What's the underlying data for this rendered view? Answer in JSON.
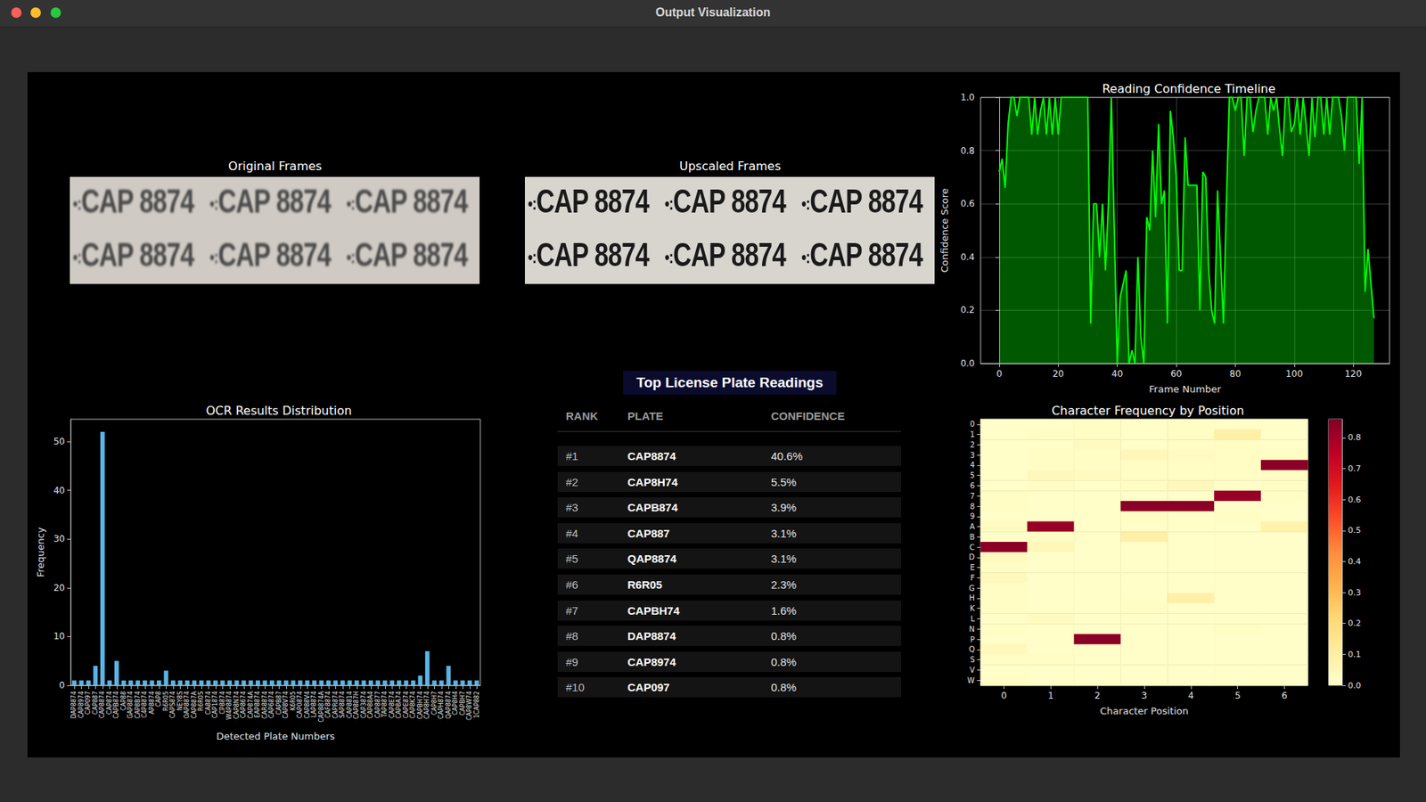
{
  "window": {
    "title": "Output Visualization"
  },
  "frames": {
    "original": {
      "title": "Original Frames",
      "plates": [
        "CAP 8874",
        "CAP 8874",
        "CAP 8874",
        "CAP 8874",
        "CAP 8874",
        "CAP 8874"
      ]
    },
    "upscaled": {
      "title": "Upscaled Frames",
      "plates": [
        "CAP 8874",
        "CAP 8874",
        "CAP 8874",
        "CAP 8874",
        "CAP 8874",
        "CAP 8874"
      ]
    }
  },
  "table": {
    "title": "Top License Plate Readings",
    "columns": [
      "RANK",
      "PLATE",
      "CONFIDENCE"
    ],
    "rows": [
      [
        "#1",
        "CAP8874",
        "40.6%"
      ],
      [
        "#2",
        "CAP8H74",
        "5.5%"
      ],
      [
        "#3",
        "CAPB874",
        "3.9%"
      ],
      [
        "#4",
        "CAP887",
        "3.1%"
      ],
      [
        "#5",
        "QAP8874",
        "3.1%"
      ],
      [
        "#6",
        "R6R05",
        "2.3%"
      ],
      [
        "#7",
        "CAPBH74",
        "1.6%"
      ],
      [
        "#8",
        "DAP8874",
        "0.8%"
      ],
      [
        "#9",
        "CAP8974",
        "0.8%"
      ],
      [
        "#10",
        "CAP097",
        "0.8%"
      ]
    ]
  },
  "chart_data": [
    {
      "type": "line",
      "title": "Reading Confidence Timeline",
      "xlabel": "Frame Number",
      "ylabel": "Confidence Score",
      "color": "#00ff00",
      "grid": true,
      "x": [
        0,
        1,
        2,
        3,
        4,
        5,
        6,
        7,
        8,
        9,
        10,
        11,
        12,
        13,
        14,
        15,
        16,
        17,
        18,
        19,
        20,
        21,
        22,
        23,
        24,
        25,
        26,
        27,
        28,
        29,
        30,
        31,
        32,
        33,
        34,
        35,
        36,
        37,
        38,
        39,
        40,
        41,
        42,
        43,
        44,
        45,
        46,
        47,
        48,
        49,
        50,
        51,
        52,
        53,
        54,
        55,
        56,
        57,
        58,
        59,
        60,
        61,
        62,
        63,
        64,
        65,
        66,
        67,
        68,
        69,
        70,
        71,
        72,
        73,
        74,
        75,
        76,
        77,
        78,
        79,
        80,
        81,
        82,
        83,
        84,
        85,
        86,
        87,
        88,
        89,
        90,
        91,
        92,
        93,
        94,
        95,
        96,
        97,
        98,
        99,
        100,
        101,
        102,
        103,
        104,
        105,
        106,
        107,
        108,
        109,
        110,
        111,
        112,
        113,
        114,
        115,
        116,
        117,
        118,
        119,
        120,
        121,
        122,
        123,
        124,
        125,
        126,
        127
      ],
      "values": [
        0.72,
        0.77,
        0.66,
        0.9,
        1.0,
        1.0,
        0.93,
        1.0,
        1.0,
        1.0,
        1.0,
        0.86,
        1.0,
        0.86,
        0.95,
        1.0,
        0.86,
        1.0,
        0.86,
        1.0,
        0.86,
        1.0,
        1.0,
        1.0,
        1.0,
        1.0,
        1.0,
        1.0,
        1.0,
        1.0,
        1.0,
        0.15,
        0.6,
        0.6,
        0.4,
        0.6,
        0.35,
        0.6,
        1.0,
        0.5,
        0.0,
        0.25,
        0.3,
        0.35,
        0.0,
        0.05,
        0.0,
        0.4,
        0.1,
        0.0,
        0.55,
        0.5,
        0.8,
        0.55,
        0.9,
        0.6,
        0.65,
        0.15,
        0.95,
        0.85,
        0.7,
        0.35,
        0.35,
        0.85,
        0.67,
        0.67,
        0.67,
        0.67,
        0.2,
        0.72,
        0.7,
        0.35,
        0.2,
        0.15,
        0.65,
        0.4,
        0.15,
        0.6,
        1.0,
        1.0,
        0.95,
        1.0,
        1.0,
        0.78,
        1.0,
        1.0,
        0.87,
        0.95,
        1.0,
        1.0,
        1.0,
        0.86,
        1.0,
        0.95,
        1.0,
        0.88,
        0.78,
        1.0,
        1.0,
        0.87,
        0.9,
        1.0,
        0.86,
        1.0,
        0.9,
        0.78,
        1.0,
        0.85,
        1.0,
        1.0,
        0.86,
        1.0,
        0.86,
        1.0,
        1.0,
        1.0,
        0.93,
        0.8,
        1.0,
        1.0,
        1.0,
        1.0,
        0.75,
        1.0,
        0.27,
        0.43,
        0.3,
        0.17
      ],
      "xlim": [
        -6.3,
        132.3
      ],
      "xticks": [
        0,
        20,
        40,
        60,
        80,
        100,
        120
      ],
      "ylim": [
        0,
        1
      ],
      "yticks": [
        {
          "value": 0,
          "label": "0.0"
        },
        {
          "value": 0.2,
          "label": "0.2"
        },
        {
          "value": 0.4,
          "label": "0.4"
        },
        {
          "value": 0.6,
          "label": "0.6"
        },
        {
          "value": 0.8,
          "label": "0.8"
        },
        {
          "value": 1,
          "label": "1.0"
        }
      ]
    },
    {
      "type": "bar",
      "title": "OCR Results Distribution",
      "xlabel": "Detected Plate Numbers",
      "ylabel": "Frequency",
      "color": "#5ab4e5",
      "grid": false,
      "categories": [
        "DAP8874",
        "CAP8974",
        "CAP097",
        "CAP887",
        "CAP8874",
        "CAP874",
        "CAPB874",
        "CAP88",
        "GAP8874",
        "CAP8B74",
        "C4P8874",
        "AP8874",
        "CAP8",
        "R6R05",
        "CAPS874",
        "NEY8S",
        "OAP8874",
        "CAP887A",
        "R6R0S",
        "CA8874",
        "CAP1874",
        "CP8874",
        "W4P8874",
        "CAP8N74",
        "CAP8674",
        "CAP874A",
        "EAP8874",
        "CAR8874",
        "CAP6874",
        "CAPB87",
        "CAP8V74",
        "K6R05",
        "CAP0874",
        "CAP88V4",
        "LAP8874",
        "CAP8874A",
        "CAF8874",
        "CAPR874",
        "SAP8874",
        "CAP8814",
        "CAP887H",
        "CAP3874",
        "CAP88A4",
        "CAP8877",
        "TAP8874",
        "CAP8E74",
        "CAP8A74",
        "CAPE874",
        "CAP8K74",
        "CAPBH74",
        "CAP8H74",
        "CAP8H7",
        "CAPH874",
        "QAP8874",
        "CAP8H4",
        "CAPBH7",
        "CAP8W74",
        "1CAP882"
      ],
      "values": [
        1,
        1,
        1,
        4,
        52,
        1,
        5,
        1,
        1,
        1,
        1,
        1,
        1,
        3,
        1,
        1,
        1,
        1,
        1,
        1,
        1,
        1,
        1,
        1,
        1,
        1,
        1,
        1,
        1,
        1,
        1,
        1,
        1,
        1,
        1,
        1,
        1,
        1,
        1,
        1,
        1,
        1,
        1,
        1,
        1,
        1,
        1,
        1,
        1,
        2,
        7,
        1,
        1,
        4,
        1,
        1,
        1,
        1
      ],
      "ylim": [
        0,
        54.6
      ],
      "yticks": [
        0,
        10,
        20,
        30,
        40,
        50
      ]
    },
    {
      "type": "heatmap",
      "title": "Character Frequency by Position",
      "xlabel": "Character Position",
      "x_categories": [
        0,
        1,
        2,
        3,
        4,
        5,
        6
      ],
      "y_categories": [
        "0",
        "1",
        "2",
        "3",
        "4",
        "5",
        "6",
        "7",
        "8",
        "9",
        "A",
        "B",
        "C",
        "D",
        "E",
        "F",
        "G",
        "H",
        "K",
        "L",
        "N",
        "P",
        "Q",
        "S",
        "V",
        "W"
      ],
      "cells": [
        [
          0.01,
          0.01,
          0.02,
          0.01,
          0.02,
          0.01,
          0.01
        ],
        [
          0.01,
          0.02,
          0.02,
          0.01,
          0.02,
          0.09,
          0.01
        ],
        [
          0.01,
          0.01,
          0.03,
          0.01,
          0.02,
          0.02,
          0.01
        ],
        [
          0.01,
          0.02,
          0.02,
          0.05,
          0.03,
          0.02,
          0.02
        ],
        [
          0.01,
          0.02,
          0.02,
          0.02,
          0.02,
          0.02,
          0.84
        ],
        [
          0.01,
          0.04,
          0.03,
          0.02,
          0.02,
          0.02,
          0.02
        ],
        [
          0.01,
          0.02,
          0.01,
          0.02,
          0.04,
          0.01,
          0.02
        ],
        [
          0.02,
          0.01,
          0.01,
          0.01,
          0.01,
          0.82,
          0.02
        ],
        [
          0.02,
          0.01,
          0.01,
          0.84,
          0.84,
          0.01,
          0.01
        ],
        [
          0.01,
          0.01,
          0.01,
          0.02,
          0.01,
          0.02,
          0.01
        ],
        [
          0.03,
          0.82,
          0.01,
          0.01,
          0.01,
          0.01,
          0.08
        ],
        [
          0.01,
          0.02,
          0.01,
          0.09,
          0.01,
          0.01,
          0.01
        ],
        [
          0.84,
          0.05,
          0.01,
          0.01,
          0.01,
          0.01,
          0.01
        ],
        [
          0.03,
          0.01,
          0.01,
          0.01,
          0.01,
          0.01,
          0.01
        ],
        [
          0.02,
          0.01,
          0.01,
          0.01,
          0.01,
          0.01,
          0.01
        ],
        [
          0.04,
          0.01,
          0.01,
          0.01,
          0.01,
          0.01,
          0.01
        ],
        [
          0.02,
          0.01,
          0.01,
          0.01,
          0.01,
          0.01,
          0.01
        ],
        [
          0.02,
          0.01,
          0.01,
          0.01,
          0.09,
          0.01,
          0.01
        ],
        [
          0.02,
          0.01,
          0.01,
          0.02,
          0.01,
          0.01,
          0.01
        ],
        [
          0.01,
          0.03,
          0.01,
          0.01,
          0.01,
          0.01,
          0.01
        ],
        [
          0.02,
          0.01,
          0.01,
          0.01,
          0.01,
          0.02,
          0.01
        ],
        [
          0.01,
          0.01,
          0.84,
          0.01,
          0.01,
          0.01,
          0.01
        ],
        [
          0.04,
          0.01,
          0.01,
          0.01,
          0.01,
          0.01,
          0.01
        ],
        [
          0.02,
          0.02,
          0.01,
          0.01,
          0.01,
          0.01,
          0.01
        ],
        [
          0.01,
          0.01,
          0.01,
          0.01,
          0.01,
          0.01,
          0.01
        ],
        [
          0.02,
          0.01,
          0.01,
          0.01,
          0.01,
          0.01,
          0.01
        ]
      ],
      "colorbar": {
        "range": [
          0,
          0.86
        ],
        "ticks": [
          {
            "value": 0,
            "label": "0.0"
          },
          {
            "value": 0.1,
            "label": "0.1"
          },
          {
            "value": 0.2,
            "label": "0.2"
          },
          {
            "value": 0.3,
            "label": "0.3"
          },
          {
            "value": 0.4,
            "label": "0.4"
          },
          {
            "value": 0.5,
            "label": "0.5"
          },
          {
            "value": 0.6,
            "label": "0.6"
          },
          {
            "value": 0.7,
            "label": "0.7"
          },
          {
            "value": 0.8,
            "label": "0.8"
          }
        ]
      }
    }
  ]
}
